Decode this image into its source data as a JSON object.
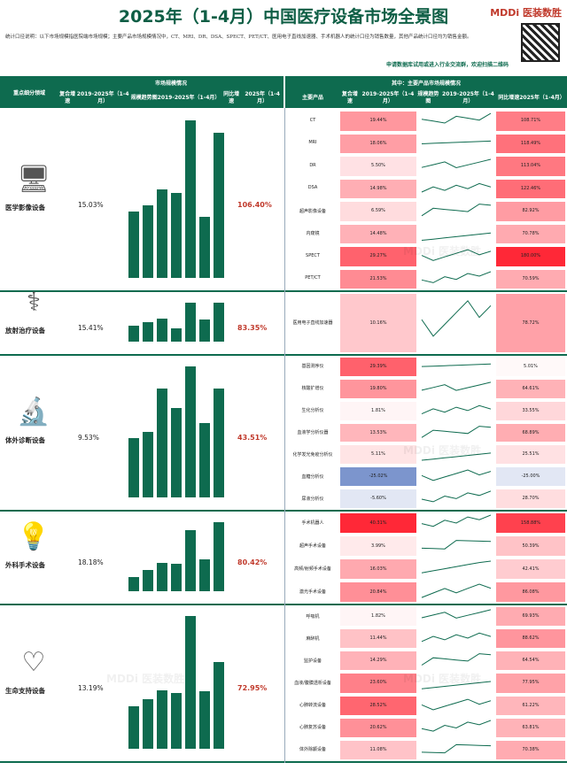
{
  "page": {
    "title": "2025年（1-4月）中国医疗设备市场全景图",
    "logo_text": "MDDi 医装数胜",
    "notes": "统计口径说明：以下市场规模指医院端市场规模；主要产品市场规模情况中，CT、MRI、DR、DSA、SPECT、PET/CT、医用电子直线加速器、手术机器人的统计口径为销售数量，其他产品统计口径均为销售金额。",
    "cta": "申请数据库试用或进入行业交流群，欢迎扫描二维码",
    "watermark": "MDDi 医装数胜"
  },
  "headers": {
    "left_section": "重点细分领域",
    "market_section": "市场规模情况",
    "products_section": "其中：主要产品市场规模情况",
    "cagr": "复合增速",
    "cagr_period": "2019-2025年（1-4月）",
    "trend": "规模趋势图",
    "trend_period": "2019-2025年（1-4月）",
    "yoy": "同比增速",
    "yoy_period": "2025年（1-4月）",
    "main_product": "主要产品"
  },
  "chart_data": {
    "type": "table",
    "categories": [
      {
        "name": "医学影像设备",
        "icon": "ultrasound-machine-icon",
        "cagr": "15.03%",
        "yoy": "106.40%",
        "trend": [
          0.42,
          0.46,
          0.56,
          0.54,
          1.0,
          0.39,
          0.92
        ],
        "products": [
          {
            "name": "CT",
            "cagr": "19.44%",
            "yoy": "108.71%",
            "cagr_v": 19.44,
            "yoy_v": 108.71
          },
          {
            "name": "MRI",
            "cagr": "18.06%",
            "yoy": "118.49%",
            "cagr_v": 18.06,
            "yoy_v": 118.49
          },
          {
            "name": "DR",
            "cagr": "5.50%",
            "yoy": "113.04%",
            "cagr_v": 5.5,
            "yoy_v": 113.04
          },
          {
            "name": "DSA",
            "cagr": "14.98%",
            "yoy": "122.46%",
            "cagr_v": 14.98,
            "yoy_v": 122.46
          },
          {
            "name": "超声影像设备",
            "cagr": "6.59%",
            "yoy": "82.92%",
            "cagr_v": 6.59,
            "yoy_v": 82.92
          },
          {
            "name": "内窥镜",
            "cagr": "14.48%",
            "yoy": "70.78%",
            "cagr_v": 14.48,
            "yoy_v": 70.78
          },
          {
            "name": "SPECT",
            "cagr": "29.27%",
            "yoy": "180.00%",
            "cagr_v": 29.27,
            "yoy_v": 180.0
          },
          {
            "name": "PET/CT",
            "cagr": "21.53%",
            "yoy": "70.59%",
            "cagr_v": 21.53,
            "yoy_v": 70.59
          }
        ]
      },
      {
        "name": "放射治疗设备",
        "icon": "radiotherapy-machine-icon",
        "cagr": "15.41%",
        "yoy": "83.35%",
        "trend": [
          0.4,
          0.5,
          0.58,
          0.35,
          1.0,
          0.57,
          1.0
        ],
        "products": [
          {
            "name": "医用电子直线加速器",
            "cagr": "10.16%",
            "yoy": "78.72%",
            "cagr_v": 10.16,
            "yoy_v": 78.72
          }
        ]
      },
      {
        "name": "体外诊断设备",
        "icon": "microscope-icon",
        "cagr": "9.53%",
        "yoy": "43.51%",
        "trend": [
          0.45,
          0.5,
          0.83,
          0.68,
          1.0,
          0.57,
          0.83
        ],
        "products": [
          {
            "name": "基因测序仪",
            "cagr": "29.39%",
            "yoy": "5.01%",
            "cagr_v": 29.39,
            "yoy_v": 5.01
          },
          {
            "name": "核酸扩增仪",
            "cagr": "19.80%",
            "yoy": "64.61%",
            "cagr_v": 19.8,
            "yoy_v": 64.61
          },
          {
            "name": "生化分析仪",
            "cagr": "1.81%",
            "yoy": "33.55%",
            "cagr_v": 1.81,
            "yoy_v": 33.55
          },
          {
            "name": "血液学分析仪器",
            "cagr": "13.53%",
            "yoy": "68.89%",
            "cagr_v": 13.53,
            "yoy_v": 68.89
          },
          {
            "name": "化学发光免疫分析仪",
            "cagr": "5.11%",
            "yoy": "25.51%",
            "cagr_v": 5.11,
            "yoy_v": 25.51
          },
          {
            "name": "血糖分析仪",
            "cagr": "-25.02%",
            "yoy": "-25.00%",
            "cagr_v": -25.02,
            "yoy_v": -25.0
          },
          {
            "name": "尿液分析仪",
            "cagr": "-5.60%",
            "yoy": "28.70%",
            "cagr_v": -5.6,
            "yoy_v": 28.7
          }
        ]
      },
      {
        "name": "外科手术设备",
        "icon": "surgical-lamp-icon",
        "cagr": "18.18%",
        "yoy": "80.42%",
        "trend": [
          0.21,
          0.31,
          0.41,
          0.4,
          0.88,
          0.46,
          1.0
        ],
        "products": [
          {
            "name": "手术机器人",
            "cagr": "40.31%",
            "yoy": "158.88%",
            "cagr_v": 40.31,
            "yoy_v": 158.88
          },
          {
            "name": "超声手术设备",
            "cagr": "3.99%",
            "yoy": "50.39%",
            "cagr_v": 3.99,
            "yoy_v": 50.39
          },
          {
            "name": "高频/射频手术设备",
            "cagr": "16.03%",
            "yoy": "42.41%",
            "cagr_v": 16.03,
            "yoy_v": 42.41
          },
          {
            "name": "激光手术设备",
            "cagr": "20.84%",
            "yoy": "86.08%",
            "cagr_v": 20.84,
            "yoy_v": 86.08
          }
        ]
      },
      {
        "name": "生命支持设备",
        "icon": "ventilator-icon",
        "cagr": "13.19%",
        "yoy": "72.95%",
        "trend": [
          0.32,
          0.37,
          0.44,
          0.42,
          1.0,
          0.43,
          0.65
        ],
        "products": [
          {
            "name": "呼吸机",
            "cagr": "1.82%",
            "yoy": "69.93%",
            "cagr_v": 1.82,
            "yoy_v": 69.93
          },
          {
            "name": "麻醉机",
            "cagr": "11.44%",
            "yoy": "88.62%",
            "cagr_v": 11.44,
            "yoy_v": 88.62
          },
          {
            "name": "监护设备",
            "cagr": "14.29%",
            "yoy": "64.54%",
            "cagr_v": 14.29,
            "yoy_v": 64.54
          },
          {
            "name": "血液/腹膜透析设备",
            "cagr": "23.60%",
            "yoy": "77.95%",
            "cagr_v": 23.6,
            "yoy_v": 77.95
          },
          {
            "name": "心肺转流设备",
            "cagr": "28.52%",
            "yoy": "61.22%",
            "cagr_v": 28.52,
            "yoy_v": 61.22
          },
          {
            "name": "心肺复苏设备",
            "cagr": "20.62%",
            "yoy": "63.81%",
            "cagr_v": 20.62,
            "yoy_v": 63.81
          },
          {
            "name": "体外除颤设备",
            "cagr": "11.08%",
            "yoy": "70.38%",
            "cagr_v": 11.08,
            "yoy_v": 70.38
          }
        ]
      }
    ]
  },
  "colors": {
    "brand": "#0e6b4f",
    "positive": "#c8102e",
    "negative": "#2c4fa0",
    "highlight": "#c0392b"
  }
}
